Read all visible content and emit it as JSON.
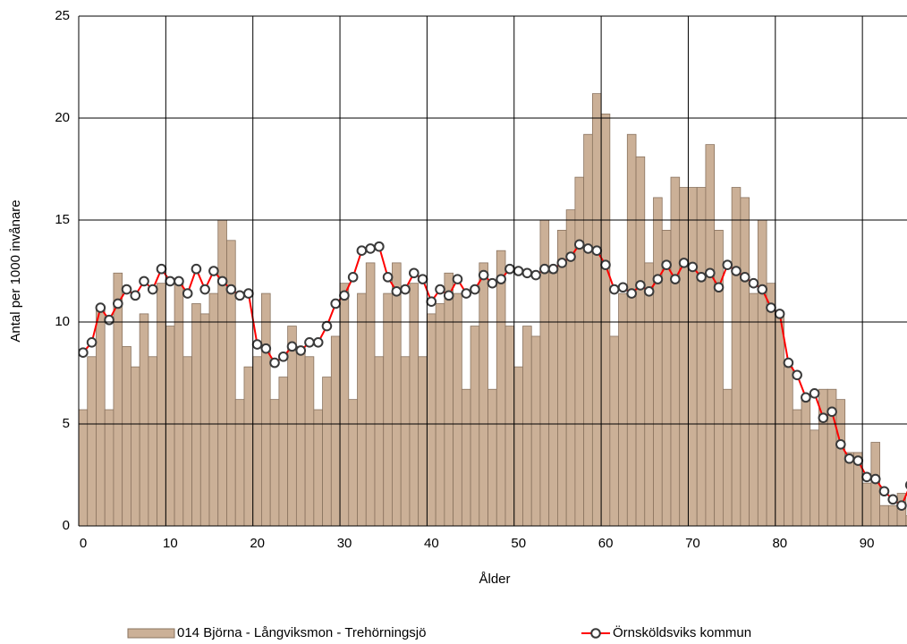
{
  "chart_data": {
    "type": "combo",
    "x_label": "Ålder",
    "y_label": "Antal per 1000 invånare",
    "x": [
      0,
      1,
      2,
      3,
      4,
      5,
      6,
      7,
      8,
      9,
      10,
      11,
      12,
      13,
      14,
      15,
      16,
      17,
      18,
      19,
      20,
      21,
      22,
      23,
      24,
      25,
      26,
      27,
      28,
      29,
      30,
      31,
      32,
      33,
      34,
      35,
      36,
      37,
      38,
      39,
      40,
      41,
      42,
      43,
      44,
      45,
      46,
      47,
      48,
      49,
      50,
      51,
      52,
      53,
      54,
      55,
      56,
      57,
      58,
      59,
      60,
      61,
      62,
      63,
      64,
      65,
      66,
      67,
      68,
      69,
      70,
      71,
      72,
      73,
      74,
      75,
      76,
      77,
      78,
      79,
      80,
      81,
      82,
      83,
      84,
      85,
      86,
      87,
      88,
      89,
      90,
      91,
      92,
      93,
      94,
      95
    ],
    "series": [
      {
        "name": "014 Björna - Långviksmon - Trehörningsjö",
        "type": "bar",
        "color": "#cbb097",
        "edge": "#8a735f",
        "values": [
          5.7,
          8.3,
          10.6,
          5.7,
          12.4,
          8.8,
          7.8,
          10.4,
          8.3,
          11.9,
          9.8,
          11.9,
          8.3,
          10.9,
          10.4,
          11.4,
          15.0,
          14.0,
          6.2,
          7.8,
          8.3,
          11.4,
          6.2,
          7.3,
          9.8,
          8.8,
          8.3,
          5.7,
          7.3,
          9.3,
          11.9,
          6.2,
          11.4,
          12.9,
          8.3,
          11.4,
          12.9,
          8.3,
          11.9,
          8.3,
          10.4,
          10.9,
          12.4,
          11.4,
          6.7,
          9.8,
          12.9,
          6.7,
          13.5,
          9.8,
          7.8,
          9.8,
          9.3,
          15.0,
          12.4,
          14.5,
          15.5,
          17.1,
          19.2,
          21.2,
          20.2,
          9.3,
          11.4,
          19.2,
          18.1,
          12.9,
          16.1,
          14.5,
          17.1,
          16.6,
          16.6,
          16.6,
          18.7,
          14.5,
          6.7,
          16.6,
          16.1,
          11.4,
          15.0,
          11.9,
          10.4,
          7.8,
          5.7,
          6.2,
          4.7,
          6.7,
          6.7,
          6.2,
          3.6,
          3.6,
          2.1,
          4.1,
          1.0,
          1.0,
          1.6,
          0.5
        ]
      },
      {
        "name": "Örnsköldsviks kommun",
        "type": "line",
        "color": "#ff0000",
        "marker_edge": "#3a3a3a",
        "values": [
          8.5,
          9.0,
          10.7,
          10.1,
          10.9,
          11.6,
          11.3,
          12.0,
          11.6,
          12.6,
          12.0,
          12.0,
          11.4,
          12.6,
          11.6,
          12.5,
          12.0,
          11.6,
          11.3,
          11.4,
          8.9,
          8.7,
          8.0,
          8.3,
          8.8,
          8.6,
          9.0,
          9.0,
          9.8,
          10.9,
          11.3,
          12.2,
          13.5,
          13.6,
          13.7,
          12.2,
          11.5,
          11.6,
          12.4,
          12.1,
          11.0,
          11.6,
          11.3,
          12.1,
          11.4,
          11.6,
          12.3,
          11.9,
          12.1,
          12.6,
          12.5,
          12.4,
          12.3,
          12.6,
          12.6,
          12.9,
          13.2,
          13.8,
          13.6,
          13.5,
          12.8,
          11.6,
          11.7,
          11.4,
          11.8,
          11.5,
          12.1,
          12.8,
          12.1,
          12.9,
          12.7,
          12.2,
          12.4,
          11.7,
          12.8,
          12.5,
          12.2,
          11.9,
          11.6,
          10.7,
          10.4,
          8.0,
          7.4,
          6.3,
          6.5,
          5.3,
          5.6,
          4.0,
          3.3,
          3.2,
          2.4,
          2.3,
          1.7,
          1.3,
          1.0,
          2.0
        ]
      }
    ],
    "xlim": [
      0,
      95
    ],
    "xticks": [
      0,
      10,
      20,
      30,
      40,
      50,
      60,
      70,
      80,
      90
    ],
    "ylim": [
      0,
      25
    ],
    "yticks": [
      0,
      5,
      10,
      15,
      20,
      25
    ],
    "grid": true,
    "legend": "bottom"
  }
}
